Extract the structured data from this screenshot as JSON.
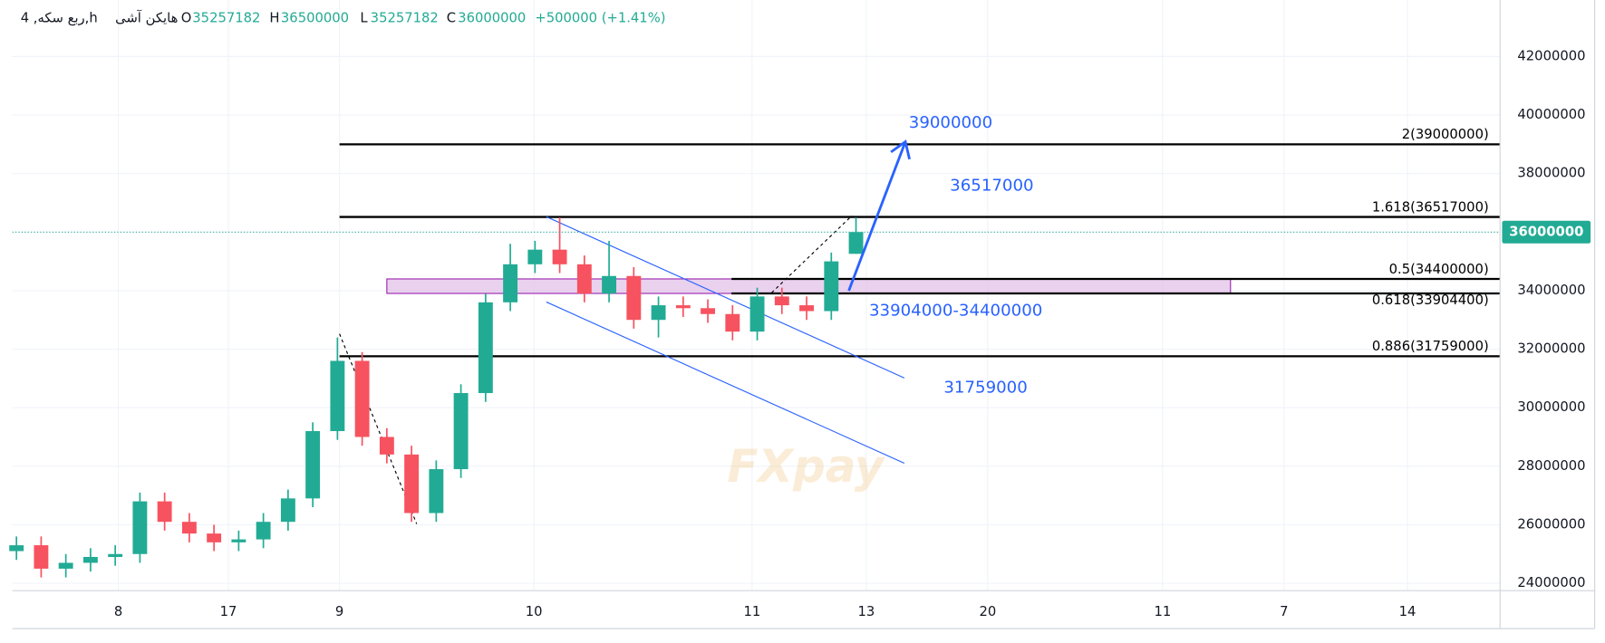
{
  "header": {
    "symbol": "4 ,ربع سکه,h",
    "style": "هایکن آشی",
    "o_label": "O",
    "h_label": "H",
    "l_label": "L",
    "c_label": "C",
    "change": "+500000 (+1.41%)"
  },
  "watermark": "FXpay",
  "chart_data": {
    "type": "candlestick",
    "x": [
      1,
      7,
      13,
      19,
      25,
      31,
      37,
      43,
      49,
      55,
      61,
      67,
      73,
      79,
      85,
      91,
      97,
      103,
      109,
      115,
      121,
      127,
      133,
      139,
      145,
      151,
      157,
      163,
      169,
      175,
      181,
      187,
      193,
      199,
      205
    ],
    "open": [
      25100000,
      25300000,
      24500000,
      24700000,
      24900000,
      25000000,
      26800000,
      26100000,
      25700000,
      25400000,
      25500000,
      26100000,
      26900000,
      29200000,
      31600000,
      29000000,
      28400000,
      26400000,
      27900000,
      30500000,
      33600000,
      34900000,
      35400000,
      34900000,
      33900000,
      34500000,
      33000000,
      33500000,
      33400000,
      33200000,
      32600000,
      33800000,
      33500000,
      33300000,
      35257182
    ],
    "high": [
      25600000,
      25600000,
      25000000,
      25200000,
      25300000,
      27100000,
      27100000,
      26400000,
      26000000,
      25800000,
      26400000,
      27200000,
      29500000,
      32400000,
      31900000,
      29300000,
      28700000,
      28200000,
      30800000,
      33900000,
      35600000,
      35700000,
      36500000,
      35200000,
      35700000,
      34800000,
      33800000,
      33800000,
      33700000,
      33500000,
      34100000,
      34100000,
      33800000,
      35300000,
      36500000
    ],
    "low": [
      24800000,
      24200000,
      24200000,
      24400000,
      24600000,
      24700000,
      25800000,
      25400000,
      25100000,
      25100000,
      25200000,
      25800000,
      26600000,
      28900000,
      28700000,
      28100000,
      26100000,
      26100000,
      27600000,
      30200000,
      33300000,
      34600000,
      34600000,
      33600000,
      33600000,
      32700000,
      32400000,
      33100000,
      32900000,
      32300000,
      32300000,
      33200000,
      33000000,
      33000000,
      35257182
    ],
    "close": [
      25300000,
      24500000,
      24700000,
      24900000,
      25000000,
      26800000,
      26100000,
      25700000,
      25400000,
      25500000,
      26100000,
      26900000,
      29200000,
      31600000,
      29000000,
      28400000,
      26400000,
      27900000,
      30500000,
      33600000,
      34900000,
      35400000,
      34900000,
      33900000,
      34500000,
      33000000,
      33500000,
      33400000,
      33200000,
      32600000,
      33800000,
      33500000,
      33300000,
      35000000,
      36000000
    ],
    "up_color": "#22ab94",
    "down_color": "#f7525f",
    "xlim": [
      0,
      361.5
    ],
    "xticks": [
      {
        "value": 25.75,
        "label": "8"
      },
      {
        "value": 52.5,
        "label": "17"
      },
      {
        "value": 79.5,
        "label": "9"
      },
      {
        "value": 126.75,
        "label": "10"
      },
      {
        "value": 179.75,
        "label": "11"
      },
      {
        "value": 207.5,
        "label": "13"
      },
      {
        "value": 237,
        "label": "20"
      },
      {
        "value": 279.5,
        "label": "11"
      },
      {
        "value": 309,
        "label": "7"
      },
      {
        "value": 339,
        "label": "14"
      }
    ],
    "ylim": [
      23750000,
      43930000
    ],
    "yticks": [
      24000000,
      26000000,
      28000000,
      30000000,
      32000000,
      34000000,
      36000000,
      38000000,
      40000000,
      42000000
    ],
    "grid": true,
    "fib_levels": [
      {
        "value": 39000000,
        "label": "2(39000000)"
      },
      {
        "value": 36517000,
        "label": "1.618(36517000)"
      },
      {
        "value": 34400000,
        "label": "0.5(34400000)"
      },
      {
        "value": 33904400,
        "label": "0.618(33904400)"
      },
      {
        "value": 31759000,
        "label": "0.886(31759000)"
      }
    ],
    "zone": [
      33904000,
      34400000
    ],
    "annotations": [
      "39000000",
      "36517000",
      "33904000-34400000",
      "31759000"
    ]
  }
}
